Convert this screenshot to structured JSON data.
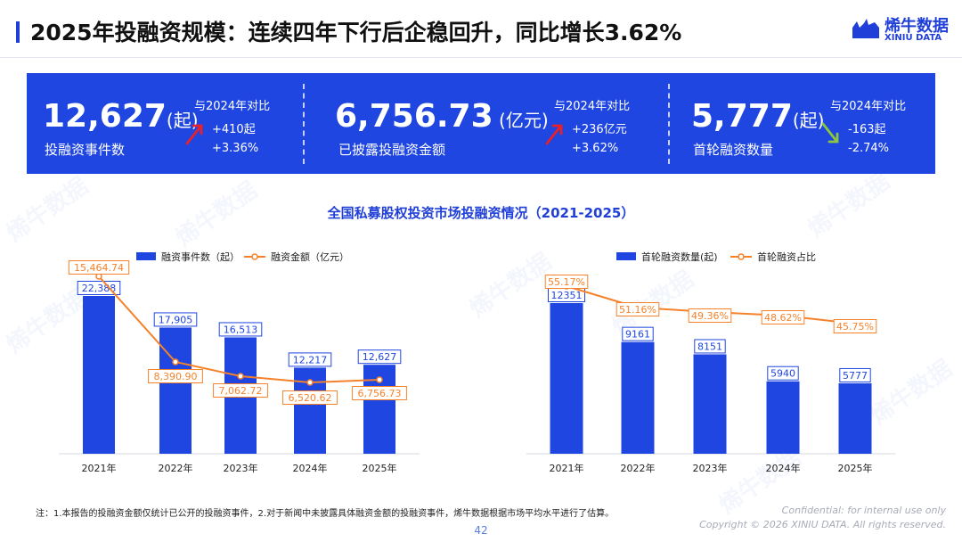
{
  "title": "2025年投融资规模：连续四年下行后企稳回升，同比增长3.62%",
  "logo": {
    "cn": "烯牛数据",
    "en": "XINIU DATA"
  },
  "kpis": [
    {
      "value": "12,627",
      "unit": "(起)",
      "label": "投融资事件数",
      "compare": "与2024年对比",
      "delta_abs": "+410起",
      "delta_pct": "+3.36%",
      "direction": "up"
    },
    {
      "value": "6,756.73",
      "unit": " (亿元)",
      "label": "已披露投融资金额",
      "compare": "与2024年对比",
      "delta_abs": "+236亿元",
      "delta_pct": "+3.62%",
      "direction": "up"
    },
    {
      "value": "5,777",
      "unit": "(起)",
      "label": "首轮融资数量",
      "compare": "与2024年对比",
      "delta_abs": "-163起",
      "delta_pct": "-2.74%",
      "direction": "down"
    }
  ],
  "charts_title": "全国私募股权投资市场投融资情况（2021-2025）",
  "colors": {
    "bar": "#1f46e0",
    "line": "#f5822a",
    "up_arrow": "#e8202a",
    "down_arrow": "#8dc63f"
  },
  "watermark": "烯牛数据",
  "chart_data": [
    {
      "type": "bar",
      "categories": [
        "2021年",
        "2022年",
        "2023年",
        "2024年",
        "2025年"
      ],
      "series": [
        {
          "name": "融资事件数（起）",
          "kind": "bar",
          "values": [
            22388,
            17905,
            16513,
            12217,
            12627
          ],
          "labels": [
            "22,388",
            "17,905",
            "16,513",
            "12,217",
            "12,627"
          ]
        },
        {
          "name": "融资金额（亿元）",
          "kind": "line",
          "values": [
            15464.74,
            8390.9,
            7062.72,
            6520.62,
            6756.73
          ],
          "labels": [
            "15,464.74",
            "8,390.90",
            "7,062.72",
            "6,520.62",
            "6,756.73"
          ]
        }
      ],
      "legend": "top-left"
    },
    {
      "type": "bar",
      "categories": [
        "2021年",
        "2022年",
        "2023年",
        "2024年",
        "2025年"
      ],
      "series": [
        {
          "name": "首轮融资数量(起)",
          "kind": "bar",
          "values": [
            12351,
            9161,
            8151,
            5940,
            5777
          ],
          "labels": [
            "12351",
            "9161",
            "8151",
            "5940",
            "5777"
          ]
        },
        {
          "name": "首轮融资占比",
          "kind": "line",
          "values": [
            55.17,
            51.16,
            49.36,
            48.62,
            45.75
          ],
          "labels": [
            "55.17%",
            "51.16%",
            "49.36%",
            "48.62%",
            "45.75%"
          ]
        }
      ],
      "legend": "top-left"
    }
  ],
  "footnote": "注：1.本报告的投融资金额仅统计已公开的投融资事件，2.对于新闻中未披露具体融资金额的投融资事件，烯牛数据根据市场平均水平进行了估算。",
  "confidential": "Confidential: for internal use only",
  "copyright": "Copyright © 2026 XINIU DATA.  All rights reserved.",
  "page_number": "42"
}
